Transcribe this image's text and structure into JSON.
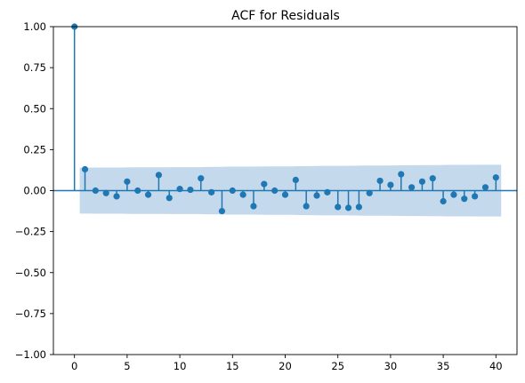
{
  "chart_data": {
    "type": "stem",
    "title": "ACF for Residuals",
    "xlabel": "",
    "ylabel": "",
    "xlim": [
      -2,
      42
    ],
    "ylim": [
      -1.0,
      1.0
    ],
    "xticks": [
      0,
      5,
      10,
      15,
      20,
      25,
      30,
      35,
      40
    ],
    "yticks": [
      "−1.00",
      "−0.75",
      "−0.50",
      "−0.25",
      "0.00",
      "0.25",
      "0.50",
      "0.75",
      "1.00"
    ],
    "ytick_values": [
      -1.0,
      -0.75,
      -0.5,
      -0.25,
      0.0,
      0.25,
      0.5,
      0.75,
      1.0
    ],
    "grid": false,
    "lags": [
      0,
      1,
      2,
      3,
      4,
      5,
      6,
      7,
      8,
      9,
      10,
      11,
      12,
      13,
      14,
      15,
      16,
      17,
      18,
      19,
      20,
      21,
      22,
      23,
      24,
      25,
      26,
      27,
      28,
      29,
      30,
      31,
      32,
      33,
      34,
      35,
      36,
      37,
      38,
      39,
      40
    ],
    "values": [
      1.0,
      0.13,
      0.0,
      -0.015,
      -0.035,
      0.055,
      0.0,
      -0.025,
      0.095,
      -0.045,
      0.01,
      0.005,
      0.075,
      -0.01,
      -0.125,
      0.0,
      -0.025,
      -0.095,
      0.04,
      0.0,
      -0.025,
      0.065,
      -0.095,
      -0.03,
      -0.01,
      -0.1,
      -0.105,
      -0.1,
      -0.015,
      0.06,
      0.035,
      0.1,
      0.02,
      0.055,
      0.075,
      -0.065,
      -0.025,
      -0.05,
      -0.035,
      0.02,
      0.08
    ],
    "confidence_band": {
      "x_start": 0.5,
      "x_end": 40.5,
      "upper": [
        0.14,
        0.14,
        0.141,
        0.141,
        0.141,
        0.142,
        0.142,
        0.142,
        0.142,
        0.143,
        0.143,
        0.143,
        0.144,
        0.145,
        0.146,
        0.146,
        0.146,
        0.147,
        0.148,
        0.148,
        0.148,
        0.149,
        0.15,
        0.151,
        0.151,
        0.151,
        0.152,
        0.153,
        0.153,
        0.153,
        0.154,
        0.155,
        0.155,
        0.156,
        0.156,
        0.157,
        0.157,
        0.157,
        0.158,
        0.158,
        0.158
      ],
      "lower": [
        -0.14,
        -0.14,
        -0.141,
        -0.141,
        -0.141,
        -0.142,
        -0.142,
        -0.142,
        -0.142,
        -0.143,
        -0.143,
        -0.143,
        -0.144,
        -0.145,
        -0.146,
        -0.146,
        -0.146,
        -0.147,
        -0.148,
        -0.148,
        -0.148,
        -0.149,
        -0.15,
        -0.151,
        -0.151,
        -0.151,
        -0.152,
        -0.153,
        -0.153,
        -0.153,
        -0.154,
        -0.155,
        -0.155,
        -0.156,
        -0.156,
        -0.157,
        -0.157,
        -0.157,
        -0.158,
        -0.158,
        -0.158
      ]
    },
    "colors": {
      "stem": "#1f77b4",
      "band": "#c5d9ec",
      "zero_line": "#1f77b4",
      "axis": "#000000"
    }
  }
}
